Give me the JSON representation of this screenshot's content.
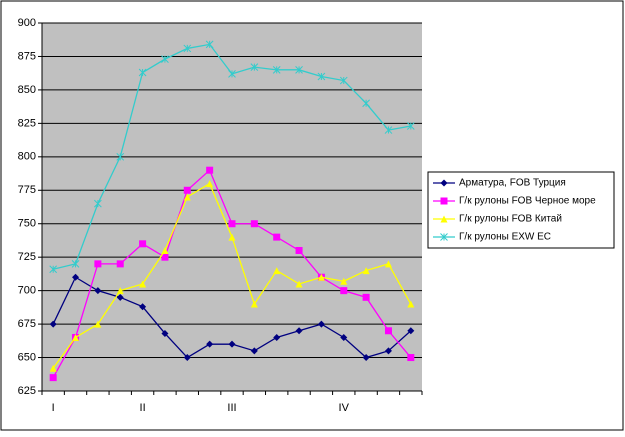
{
  "chart_data": {
    "type": "line",
    "categories": [
      "I",
      null,
      null,
      null,
      "II",
      null,
      null,
      null,
      "III",
      null,
      null,
      null,
      null,
      "IV",
      null,
      null,
      null
    ],
    "series": [
      {
        "name": "Арматура, FOB Турция",
        "color": "#000080",
        "marker": "diamond",
        "values": [
          675,
          710,
          700,
          695,
          688,
          668,
          650,
          660,
          660,
          655,
          665,
          670,
          675,
          665,
          650,
          655,
          670
        ]
      },
      {
        "name": "Г/к рулоны FOB Черное море",
        "color": "#ff00ff",
        "marker": "square",
        "values": [
          635,
          665,
          720,
          720,
          735,
          725,
          775,
          790,
          750,
          750,
          740,
          730,
          710,
          700,
          695,
          670,
          650
        ]
      },
      {
        "name": "Г/к рулоны FOB Китай",
        "color": "#ffff00",
        "marker": "triangle",
        "values": [
          642,
          665,
          675,
          700,
          705,
          730,
          770,
          780,
          740,
          690,
          715,
          705,
          710,
          707,
          715,
          720,
          690
        ]
      },
      {
        "name": "Г/к рулоны EXW EC",
        "color": "#33cccc",
        "marker": "x",
        "values": [
          716,
          720,
          765,
          800,
          863,
          873,
          881,
          884,
          862,
          867,
          865,
          865,
          860,
          857,
          840,
          820,
          823
        ]
      }
    ],
    "ylim": [
      625,
      900
    ],
    "yticks": [
      625,
      650,
      675,
      700,
      725,
      750,
      775,
      800,
      825,
      850,
      875,
      900
    ],
    "grid": true,
    "legend": "right",
    "plot_background": "#c0c0c0"
  }
}
